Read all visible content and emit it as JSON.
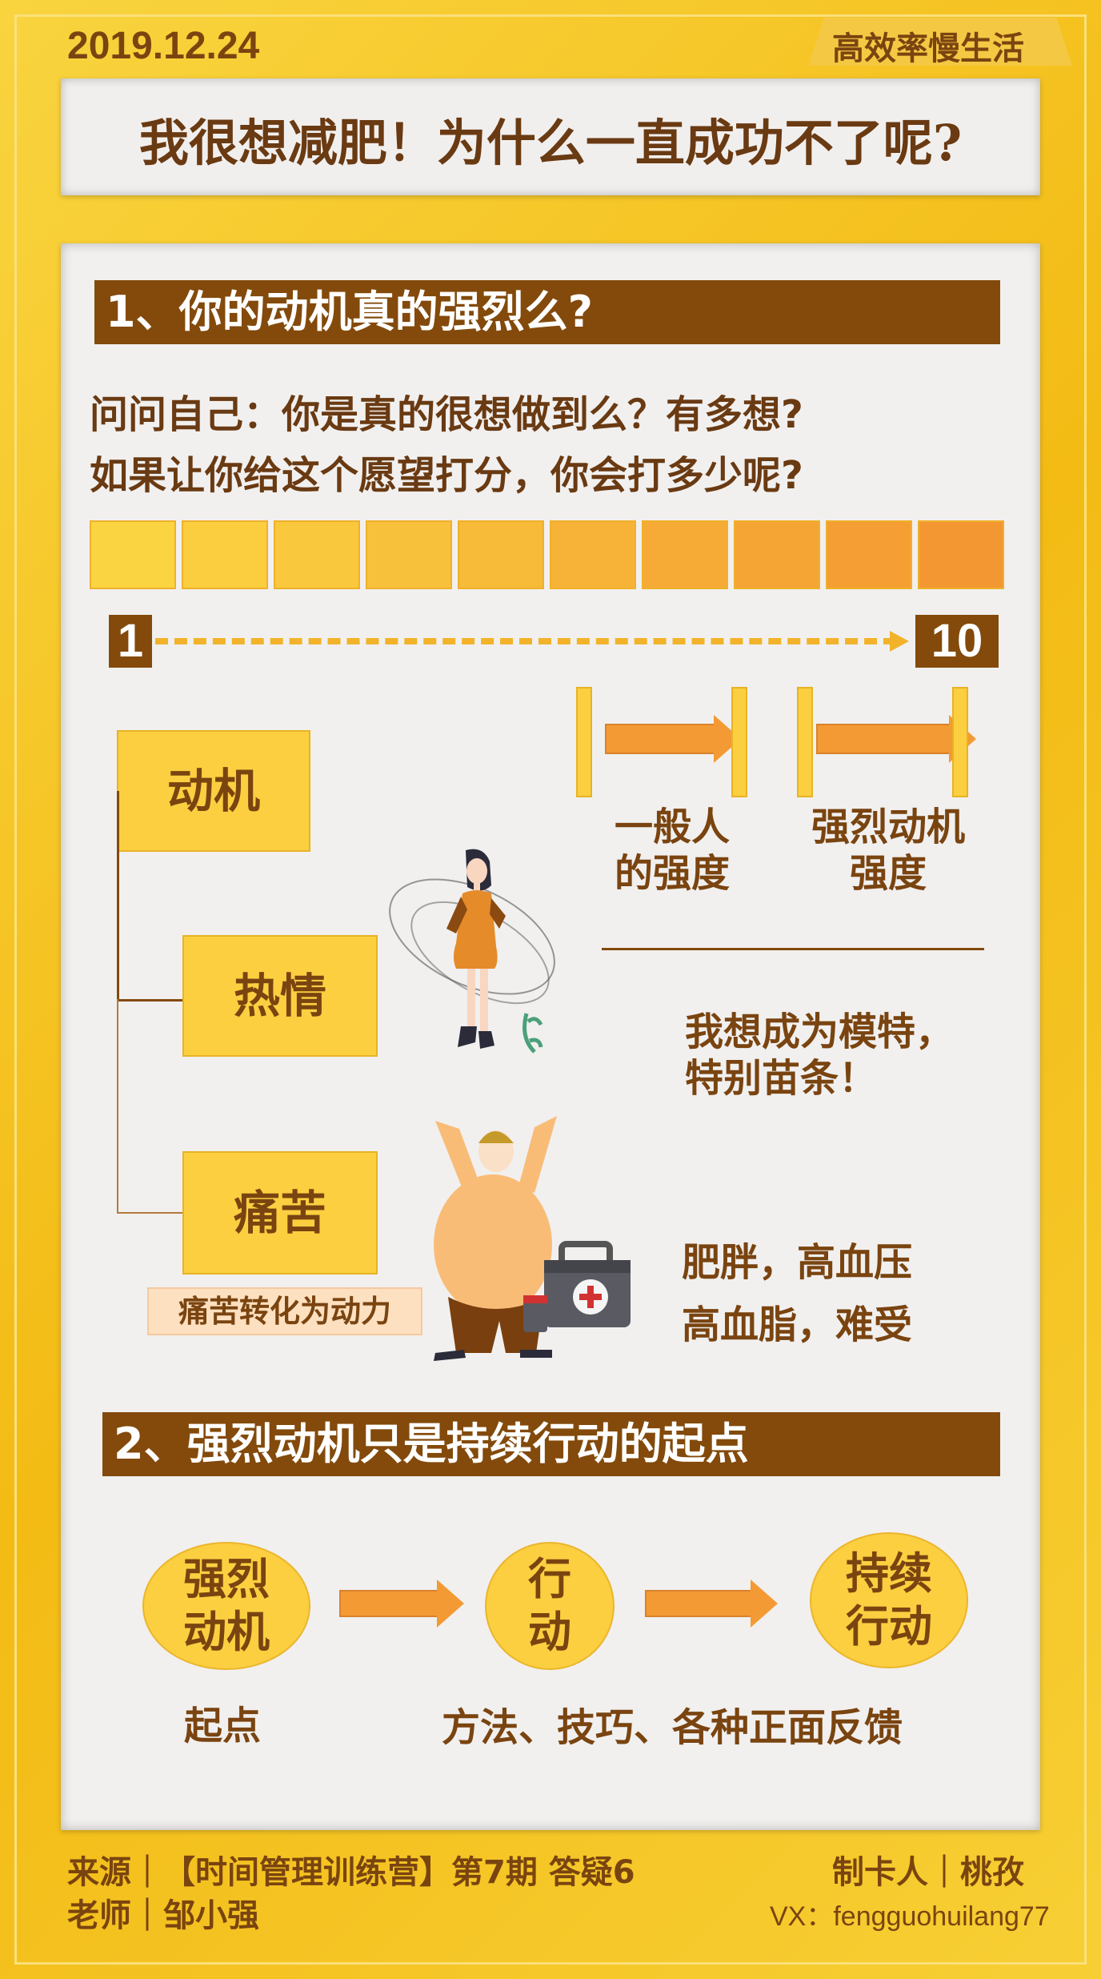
{
  "header": {
    "date": "2019.12.24",
    "brand": "高效率慢生活",
    "title": "我很想减肥！为什么一直成功不了呢?"
  },
  "section1": {
    "heading": "1、你的动机真的强烈么?",
    "question_line1": "问问自己：你是真的很想做到么？有多想?",
    "question_line2": "如果让你给这个愿望打分，你会打多少呢?",
    "scale": {
      "min_label": "1",
      "max_label": "10",
      "colors": [
        "#fbd441",
        "#fbce3f",
        "#f9c83d",
        "#f8c13b",
        "#f7ba39",
        "#f6b337",
        "#f5ab36",
        "#f4a534",
        "#f49e33",
        "#f39732"
      ]
    },
    "tree": {
      "root": "动机",
      "child1": "热情",
      "child2": "痛苦",
      "pain_note": "痛苦转化为动力"
    },
    "intensity": {
      "normal_line1": "一般人",
      "normal_line2": "的强度",
      "strong_line1": "强烈动机",
      "strong_line2": "强度"
    },
    "passion_text_line1": "我想成为模特，",
    "passion_text_line2": "特别苗条！",
    "pain_text_line1": "肥胖，高血压",
    "pain_text_line2": "高血脂，难受"
  },
  "section2": {
    "heading": "2、强烈动机只是持续行动的起点",
    "node1_line1": "强烈",
    "node1_line2": "动机",
    "node2_line1": "行",
    "node2_line2": "动",
    "node3_line1": "持续",
    "node3_line2": "行动",
    "label_start": "起点",
    "label_methods": "方法、技巧、各种正面反馈"
  },
  "footer": {
    "source_line": "来源｜【时间管理训练营】第7期  答疑6",
    "teacher_line": "老师｜邹小强",
    "maker_line": "制卡人｜桃孜",
    "vx_line": "VX：fengguohuilang77"
  }
}
